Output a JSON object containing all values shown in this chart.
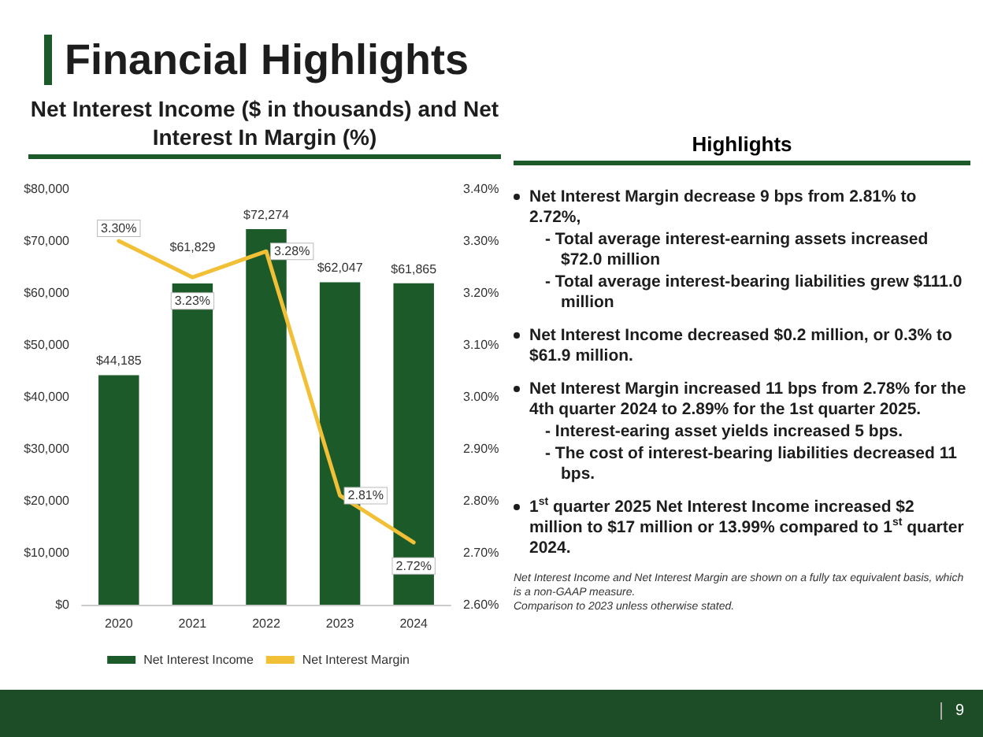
{
  "chart_data": [
    {
      "type": "bar",
      "title": "Net Interest Income ($ in thousands) and Net Interest In Margin (%)",
      "annotations": [
        "Financial Highlights",
        "9"
      ],
      "categories": [
        "2020",
        "2021",
        "2022",
        "2023",
        "2024"
      ],
      "series": [
        {
          "name": "Net Interest Income",
          "type": "bar",
          "color": "#1d5a2a",
          "values": [
            44185,
            61829,
            72274,
            62047,
            61865
          ],
          "value_labels": [
            "$44,185",
            "$61,829",
            "$72,274",
            "$62,047",
            "$61,865"
          ]
        },
        {
          "name": "Net Interest Margin",
          "type": "line",
          "axis": "y2",
          "color": "#f2c037",
          "values": [
            3.3,
            3.23,
            3.28,
            2.81,
            2.72
          ],
          "value_labels": [
            "3.30%",
            "3.23%",
            "3.28%",
            "2.81%",
            "2.72%"
          ]
        }
      ],
      "ylim": [
        0,
        80000
      ],
      "yticks": [
        {
          "value": 0,
          "label": "$0"
        },
        {
          "value": 10000,
          "label": "$10,000"
        },
        {
          "value": 20000,
          "label": "$20,000"
        },
        {
          "value": 30000,
          "label": "$30,000"
        },
        {
          "value": 40000,
          "label": "$40,000"
        },
        {
          "value": 50000,
          "label": "$50,000"
        },
        {
          "value": 60000,
          "label": "$60,000"
        },
        {
          "value": 70000,
          "label": "$70,000"
        },
        {
          "value": 80000,
          "label": "$80,000"
        }
      ],
      "y2lim": [
        2.6,
        3.4
      ],
      "y2ticks": [
        {
          "value": 2.6,
          "label": "2.60%"
        },
        {
          "value": 2.7,
          "label": "2.70%"
        },
        {
          "value": 2.8,
          "label": "2.80%"
        },
        {
          "value": 2.9,
          "label": "2.90%"
        },
        {
          "value": 3.0,
          "label": "3.00%"
        },
        {
          "value": 3.1,
          "label": "3.10%"
        },
        {
          "value": 3.2,
          "label": "3.20%"
        },
        {
          "value": 3.3,
          "label": "3.30%"
        },
        {
          "value": 3.4,
          "label": "3.40%"
        }
      ],
      "legend": "bottom",
      "marker": "none",
      "line_style": "solid",
      "grid": false
    },
    {
      "type": "other",
      "title": "Highlights",
      "annotations": [
        "Net Interest Margin decrease 9 bps from 2.81% to 2.72%,",
        "- Total average interest-earning assets increased $72.0 million",
        "- Total average interest-bearing liabilities grew $111.0 million",
        "Net Interest Income decreased $0.2 million, or 0.3% to $61.9 million.",
        "Net Interest Margin increased 11 bps from 2.78% for the 4th quarter 2024 to 2.89% for the 1st quarter 2025.",
        "- Interest-earing asset yields increased 5 bps.",
        "- The cost of interest-bearing liabilities decreased 11 bps.",
        "1$^{st}$ quarter 2025 Net Interest Income increased $2 million to $17 million or 13.99% compared to 1$^{st}$ quarter 2024.",
        "Net Interest Income and Net Interest Margin are shown on a fully tax equivalent basis, which is a non-GAAP measure.",
        "Comparison to 2023 unless otherwise stated."
      ]
    }
  ]
}
